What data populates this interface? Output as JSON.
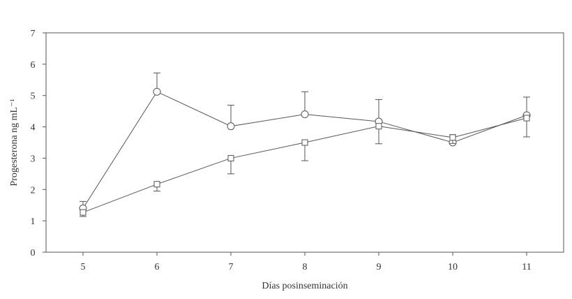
{
  "chart_data": {
    "type": "line",
    "title": "",
    "xlabel": "Días posinseminación",
    "ylabel": "Progesterona ng mL⁻¹",
    "x": [
      5,
      6,
      7,
      8,
      9,
      10,
      11
    ],
    "xlim": [
      4.5,
      11.5
    ],
    "ylim": [
      0,
      7
    ],
    "yticks": [
      0,
      1,
      2,
      3,
      4,
      5,
      6,
      7
    ],
    "grid": false,
    "series": [
      {
        "marker": "circle",
        "values": [
          1.4,
          5.12,
          4.02,
          4.4,
          4.17,
          3.5,
          4.37
        ],
        "errors": [
          0.22,
          0.6,
          0.67,
          0.72,
          0.7,
          0.25,
          0.58
        ]
      },
      {
        "marker": "square",
        "values": [
          1.27,
          2.17,
          3.0,
          3.5,
          4.02,
          3.66,
          4.28
        ],
        "errors": [
          0.13,
          0.22,
          0.5,
          0.58,
          0.56,
          0.19,
          0.6
        ]
      }
    ],
    "colors": {
      "line": "#555555",
      "axis": "#555555"
    }
  }
}
